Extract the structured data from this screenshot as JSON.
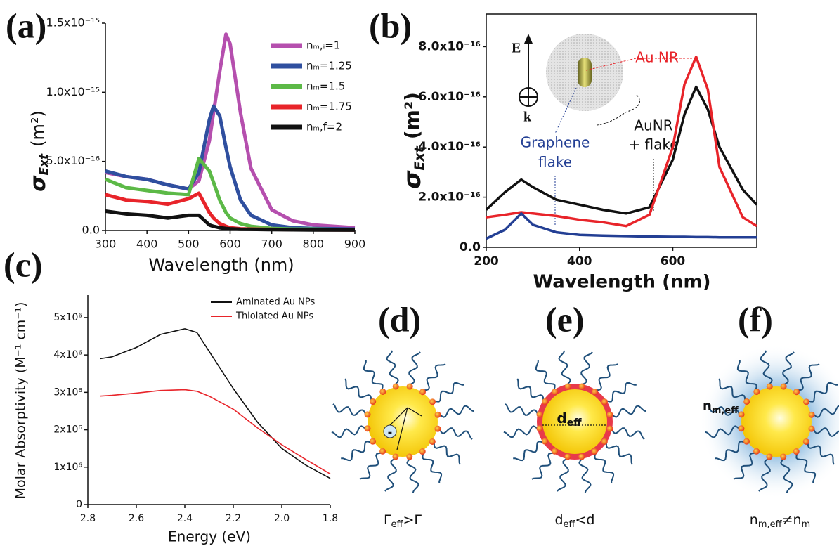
{
  "chart_data": [
    {
      "type": "line",
      "panel": "(a)",
      "x_label": "Wavelength (nm)",
      "y_label": [
        "σ",
        "Ext",
        "(m²)"
      ],
      "x": [
        300,
        350,
        400,
        450,
        500,
        525,
        550,
        560,
        575,
        590,
        600,
        625,
        650,
        700,
        750,
        800,
        900
      ],
      "xlim": [
        300,
        900
      ],
      "xticks": [
        300,
        400,
        500,
        600,
        700,
        800,
        900
      ],
      "ylim": [
        0,
        1.5e-15
      ],
      "yticks": [
        {
          "value": 0,
          "label": "0.0"
        },
        {
          "value": 5e-16,
          "label": "5.0x10⁻¹⁶"
        },
        {
          "value": 1e-15,
          "label": "1.0x10⁻¹⁵"
        },
        {
          "value": 1.5e-15,
          "label": "1.5x10⁻¹⁵"
        }
      ],
      "series": [
        {
          "name": "nₘ,ᵢ=1",
          "color": "#b54fae",
          "values": [
            4.2e-16,
            3.9e-16,
            3.7e-16,
            3.3e-16,
            3e-16,
            3.6e-16,
            6.5e-16,
            8.5e-16,
            1.15e-15,
            1.42e-15,
            1.35e-15,
            8.5e-16,
            4.5e-16,
            1.5e-16,
            7e-17,
            4e-17,
            2e-17
          ]
        },
        {
          "name": "nₘ=1.25",
          "color": "#2f4f9f",
          "values": [
            4.3e-16,
            3.9e-16,
            3.7e-16,
            3.3e-16,
            3e-16,
            4.2e-16,
            8e-16,
            9e-16,
            8.3e-16,
            6e-16,
            4.6e-16,
            2.2e-16,
            1.1e-16,
            4e-17,
            2e-17,
            1.5e-17,
            1e-17
          ]
        },
        {
          "name": "nₘ=1.5",
          "color": "#5cb947",
          "values": [
            3.7e-16,
            3.1e-16,
            2.9e-16,
            2.7e-16,
            2.6e-16,
            5.2e-16,
            4.3e-16,
            3.5e-16,
            2.2e-16,
            1.3e-16,
            9e-17,
            5e-17,
            3e-17,
            1.5e-17,
            1e-17,
            1e-17,
            5e-18
          ]
        },
        {
          "name": "nₘ=1.75",
          "color": "#e8242a",
          "values": [
            2.6e-16,
            2.2e-16,
            2.1e-16,
            1.9e-16,
            2.3e-16,
            2.7e-16,
            1.3e-16,
            9e-17,
            5e-17,
            3e-17,
            2e-17,
            1.2e-17,
            1e-17,
            8e-18,
            6e-18,
            5e-18,
            4e-18
          ]
        },
        {
          "name": "nₘ,f=2",
          "color": "#111111",
          "values": [
            1.4e-16,
            1.2e-16,
            1.1e-16,
            9e-17,
            1.1e-16,
            1.1e-16,
            4e-17,
            3e-17,
            2e-17,
            1.5e-17,
            1.2e-17,
            9e-18,
            8e-18,
            6e-18,
            5e-18,
            4e-18,
            3e-18
          ]
        }
      ]
    },
    {
      "type": "line",
      "panel": "(b)",
      "x_label": "Wavelength (nm)",
      "y_label": [
        "σ",
        "Ext",
        "(m²)"
      ],
      "annotations": [
        "Au NR",
        "Graphene",
        "flake",
        "AuNR",
        "+ flake",
        "E",
        "k"
      ],
      "x": [
        200,
        240,
        275,
        300,
        350,
        400,
        450,
        500,
        550,
        600,
        625,
        650,
        675,
        700,
        750,
        780
      ],
      "xlim": [
        200,
        780
      ],
      "xticks": [
        200,
        400,
        600
      ],
      "ylim": [
        0,
        9.3e-16
      ],
      "yticks": [
        {
          "value": 0,
          "label": "0.0"
        },
        {
          "value": 2e-16,
          "label": "2.0x10⁻¹⁶"
        },
        {
          "value": 4e-16,
          "label": "4.0x10⁻¹⁶"
        },
        {
          "value": 6e-16,
          "label": "6.0x10⁻¹⁶"
        },
        {
          "value": 8e-16,
          "label": "8.0x10⁻¹⁶"
        }
      ],
      "series": [
        {
          "color": "#111111",
          "values": [
            1.5e-16,
            2.2e-16,
            2.7e-16,
            2.4e-16,
            1.9e-16,
            1.7e-16,
            1.5e-16,
            1.35e-16,
            1.6e-16,
            3.5e-16,
            5.3e-16,
            6.4e-16,
            5.5e-16,
            4e-16,
            2.3e-16,
            1.7e-16
          ]
        },
        {
          "color": "#e8242a",
          "values": [
            1.2e-16,
            1.3e-16,
            1.4e-16,
            1.35e-16,
            1.25e-16,
            1.1e-16,
            1e-16,
            8.5e-17,
            1.3e-16,
            4e-16,
            6.5e-16,
            7.6e-16,
            6.3e-16,
            3.2e-16,
            1.2e-16,
            8.5e-17
          ]
        },
        {
          "color": "#233f94",
          "values": [
            3.5e-17,
            7e-17,
            1.35e-16,
            9e-17,
            6e-17,
            5e-17,
            4.7e-17,
            4.5e-17,
            4.3e-17,
            4.2e-17,
            4.2e-17,
            4.1e-17,
            4.1e-17,
            4e-17,
            4e-17,
            4e-17
          ]
        }
      ]
    },
    {
      "type": "line",
      "panel": "(c)",
      "x_label": "Energy (eV)",
      "y_label": "Molar Absorptivity (M⁻¹ cm⁻¹)",
      "x": [
        2.75,
        2.7,
        2.6,
        2.5,
        2.4,
        2.35,
        2.3,
        2.2,
        2.1,
        2.0,
        1.9,
        1.8
      ],
      "xlim": [
        2.8,
        1.8
      ],
      "xticks": [
        2.8,
        2.6,
        2.4,
        2.2,
        {
          "value": 2,
          "label": "2.0"
        },
        1.8
      ],
      "ylim": [
        0,
        5600000
      ],
      "yticks": [
        0,
        {
          "value": 1000000,
          "label": "1x10⁶"
        },
        {
          "value": 2000000,
          "label": "2x10⁶"
        },
        {
          "value": 3000000,
          "label": "3x10⁶"
        },
        {
          "value": 4000000,
          "label": "4x10⁶"
        },
        {
          "value": 5000000,
          "label": "5x10⁶"
        }
      ],
      "series": [
        {
          "name": "Aminated Au NPs",
          "color": "#111111",
          "values": [
            3900000,
            3950000,
            4200000,
            4550000,
            4700000,
            4600000,
            4100000,
            3100000,
            2200000,
            1500000,
            1050000,
            700000
          ]
        },
        {
          "name": "Thiolated Au NPs",
          "color": "#e8242a",
          "values": [
            2900000,
            2920000,
            2980000,
            3050000,
            3070000,
            3030000,
            2900000,
            2550000,
            2050000,
            1600000,
            1200000,
            820000
          ]
        }
      ]
    }
  ],
  "diagrams": [
    {
      "panel": "(d)",
      "labels": [
        "-"
      ],
      "caption": [
        "Γ",
        "eff",
        ">Γ"
      ]
    },
    {
      "panel": "(e)",
      "labels": [
        "d",
        "eff"
      ],
      "caption": [
        "d",
        "eff",
        "<d"
      ]
    },
    {
      "panel": "(f)",
      "labels": [
        "n",
        "m,eff"
      ],
      "caption": [
        "n",
        "m,eff",
        "≠n",
        "m"
      ]
    }
  ]
}
